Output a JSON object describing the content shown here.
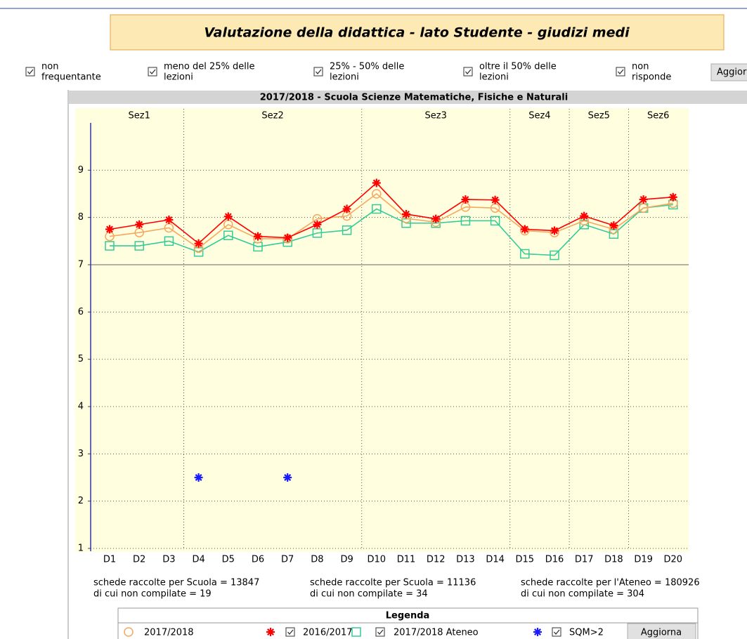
{
  "header": {
    "title": "Valutazione della didattica - lato Studente - giudizi medi"
  },
  "filters": [
    {
      "label": [
        "non",
        "frequentante"
      ],
      "checked": true
    },
    {
      "label": [
        "meno del 25% delle",
        "lezioni"
      ],
      "checked": true
    },
    {
      "label": [
        "25% - 50% delle",
        "lezioni"
      ],
      "checked": true
    },
    {
      "label": [
        "oltre il 50% delle",
        "lezioni"
      ],
      "checked": true
    },
    {
      "label": [
        "non",
        "risponde"
      ],
      "checked": true
    }
  ],
  "filter_button": "Aggiorna",
  "chart_data": {
    "type": "line",
    "title": "2017/2018 - Scuola Scienze Matematiche, Fisiche e Naturali",
    "categories": [
      "D1",
      "D2",
      "D3",
      "D4",
      "D5",
      "D6",
      "D7",
      "D8",
      "D9",
      "D10",
      "D11",
      "D12",
      "D13",
      "D14",
      "D15",
      "D16",
      "D17",
      "D18",
      "D19",
      "D20"
    ],
    "sections": [
      {
        "name": "Sez1",
        "count": 3
      },
      {
        "name": "Sez2",
        "count": 6
      },
      {
        "name": "Sez3",
        "count": 5
      },
      {
        "name": "Sez4",
        "count": 2
      },
      {
        "name": "Sez5",
        "count": 2
      },
      {
        "name": "Sez6",
        "count": 2
      }
    ],
    "ylim": [
      1,
      10
    ],
    "yticks": [
      1,
      2,
      3,
      4,
      5,
      6,
      7,
      8,
      9
    ],
    "grid": true,
    "reference_line": 7,
    "series": [
      {
        "name": "2017/2018",
        "color": "#f5a860",
        "marker": "circle",
        "line": true,
        "checkbox": false,
        "values": [
          7.6,
          7.68,
          7.78,
          7.35,
          7.85,
          7.55,
          7.55,
          7.97,
          8.03,
          8.5,
          7.98,
          7.9,
          8.22,
          8.2,
          7.72,
          7.68,
          7.93,
          7.75,
          8.2,
          8.3
        ]
      },
      {
        "name": "2016/2017",
        "color": "#ff0000",
        "marker": "asterisk",
        "line": true,
        "checkbox": true,
        "values": [
          7.75,
          7.85,
          7.95,
          7.45,
          8.02,
          7.6,
          7.57,
          7.85,
          8.18,
          8.73,
          8.07,
          7.97,
          8.38,
          8.37,
          7.75,
          7.72,
          8.03,
          7.83,
          8.38,
          8.43
        ]
      },
      {
        "name": "2017/2018 Ateneo",
        "color": "#33cc99",
        "marker": "square",
        "line": true,
        "checkbox": true,
        "values": [
          7.4,
          7.4,
          7.5,
          7.27,
          7.62,
          7.38,
          7.48,
          7.67,
          7.73,
          8.18,
          7.88,
          7.88,
          7.93,
          7.93,
          7.23,
          7.2,
          7.85,
          7.65,
          8.2,
          8.27
        ]
      },
      {
        "name": "SQM>2",
        "color": "#1a1aff",
        "marker": "asterisk",
        "line": false,
        "checkbox": true,
        "values": [
          null,
          null,
          null,
          2.5,
          null,
          null,
          2.5,
          null,
          null,
          null,
          null,
          null,
          null,
          null,
          null,
          null,
          null,
          null,
          null,
          null
        ]
      }
    ]
  },
  "stats": [
    {
      "color": "#f5a860",
      "lines": [
        "schede raccolte per Scuola = 13847",
        "di cui non compilate = 19"
      ]
    },
    {
      "color": "#ff0000",
      "lines": [
        "schede raccolte per Scuola = 11136",
        "di cui non compilate = 34"
      ]
    },
    {
      "color": "#33cc99",
      "lines": [
        "schede raccolte per l'Ateneo = 180926",
        "di cui non compilate = 304"
      ]
    }
  ],
  "legend": {
    "title": "Legenda",
    "button": "Aggiorna"
  }
}
